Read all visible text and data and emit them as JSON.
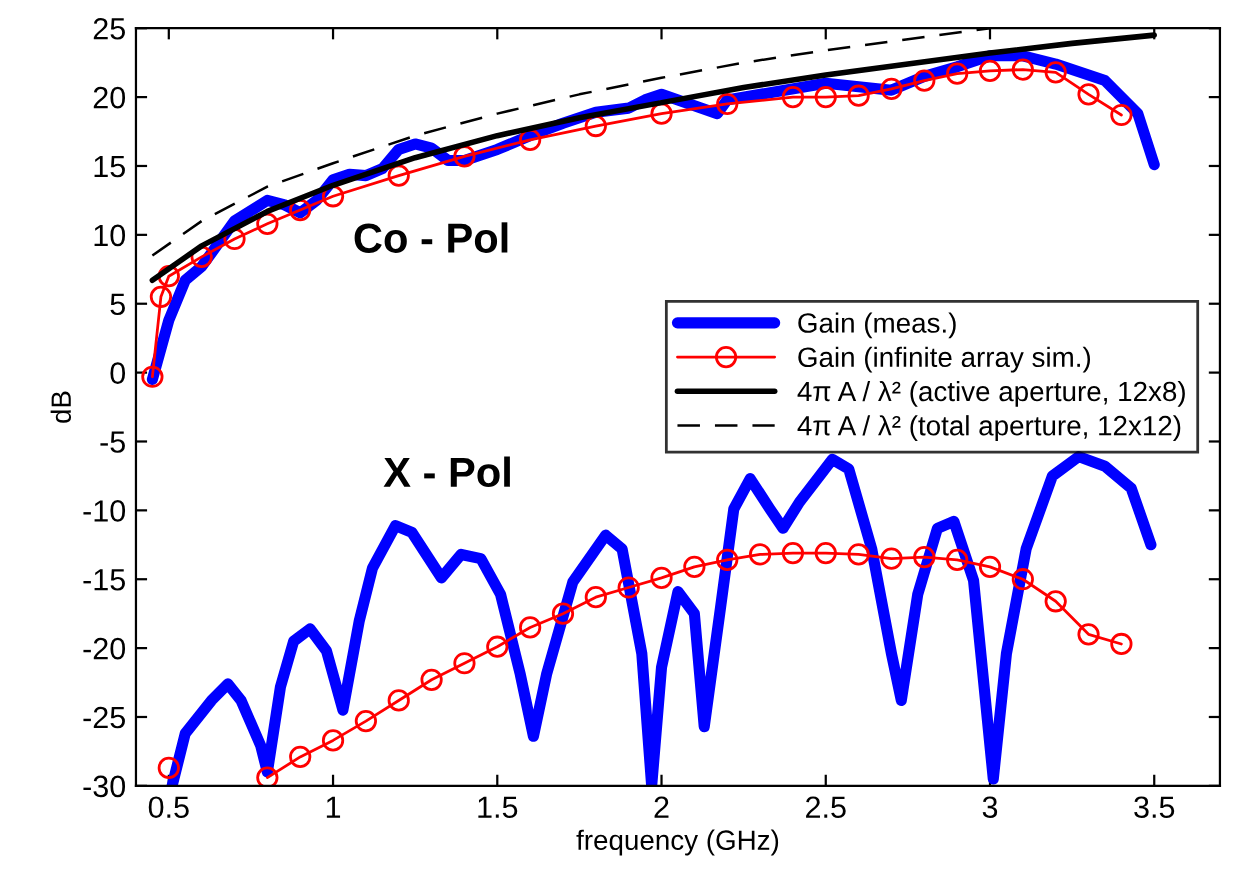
{
  "chart_data": {
    "type": "line",
    "xlabel": "frequency (GHz)",
    "ylabel": "dB",
    "xlim": [
      0.4,
      3.7
    ],
    "ylim": [
      -30,
      25
    ],
    "xticks": [
      0.5,
      1,
      1.5,
      2,
      2.5,
      3,
      3.5
    ],
    "yticks": [
      -30,
      -25,
      -20,
      -15,
      -10,
      -5,
      0,
      5,
      10,
      15,
      20,
      25
    ],
    "grid": false,
    "legend": "right",
    "annotations": [
      "Co - Pol",
      "X - Pol"
    ],
    "series": [
      {
        "name": "Gain (meas.)",
        "color": "#0000ff",
        "line_style": "solid",
        "marker": "none",
        "x": [
          0.45,
          0.5,
          0.55,
          0.6,
          0.7,
          0.8,
          0.85,
          0.9,
          0.95,
          1.0,
          1.05,
          1.1,
          1.15,
          1.2,
          1.25,
          1.3,
          1.35,
          1.4,
          1.5,
          1.6,
          1.7,
          1.8,
          1.9,
          1.95,
          2.0,
          2.17,
          2.2,
          2.5,
          2.7,
          2.8,
          2.9,
          3.0,
          3.1,
          3.2,
          3.35,
          3.45,
          3.5
        ],
        "values": [
          -0.5,
          3.8,
          6.7,
          7.7,
          11,
          12.5,
          12.2,
          11.6,
          12.5,
          14,
          14.4,
          14.3,
          14.8,
          16.2,
          16.6,
          16.3,
          15.4,
          15.4,
          16.2,
          17.2,
          18.1,
          18.9,
          19.2,
          19.8,
          20.2,
          18.8,
          19.8,
          21,
          20.5,
          21.5,
          22.2,
          23,
          23,
          22.4,
          21.2,
          18.8,
          15.1
        ]
      },
      {
        "name": "Gain (infinite array sim.)",
        "color": "#ff0000",
        "line_style": "solid",
        "marker": "circle",
        "x": [
          0.45,
          0.476,
          0.5,
          0.6,
          0.7,
          0.8,
          0.9,
          1.0,
          1.2,
          1.4,
          1.6,
          1.8,
          2.0,
          2.2,
          2.4,
          2.5,
          2.6,
          2.7,
          2.8,
          2.9,
          3.0,
          3.1,
          3.2,
          3.3,
          3.4
        ],
        "values": [
          -0.3,
          5.5,
          7,
          8.4,
          9.7,
          10.8,
          11.8,
          12.8,
          14.3,
          15.7,
          16.9,
          17.9,
          18.8,
          19.5,
          20,
          20,
          20.1,
          20.6,
          21.2,
          21.7,
          21.9,
          22,
          21.8,
          20.2,
          18.7
        ]
      },
      {
        "name": "4π A / λ² (active aperture, 12x8)",
        "color": "#000000",
        "line_style": "solid",
        "marker": "none",
        "x": [
          0.45,
          0.6,
          0.8,
          1.0,
          1.25,
          1.5,
          1.75,
          2.0,
          2.25,
          2.5,
          2.75,
          3.0,
          3.25,
          3.5
        ],
        "values": [
          6.7,
          9.2,
          11.7,
          13.6,
          15.6,
          17.2,
          18.5,
          19.6,
          20.7,
          21.6,
          22.4,
          23.2,
          23.9,
          24.5
        ]
      },
      {
        "name": "4π A / λ² (total aperture, 12x12)",
        "color": "#000000",
        "line_style": "dashed",
        "marker": "none",
        "x": [
          0.45,
          0.6,
          0.8,
          1.0,
          1.25,
          1.5,
          1.75,
          2.0,
          2.25,
          2.5,
          2.75,
          3.0
        ],
        "values": [
          8.5,
          11.0,
          13.5,
          15.2,
          17.2,
          18.8,
          20.2,
          21.4,
          22.5,
          23.4,
          24.2,
          25.0
        ]
      },
      {
        "color": "#0000ff",
        "line_style": "solid",
        "marker": "none",
        "x": [
          0.51,
          0.55,
          0.63,
          0.68,
          0.72,
          0.78,
          0.8,
          0.84,
          0.88,
          0.93,
          0.98,
          1.03,
          1.08,
          1.12,
          1.19,
          1.24,
          1.33,
          1.39,
          1.45,
          1.51,
          1.57,
          1.61,
          1.65,
          1.73,
          1.83,
          1.88,
          1.94,
          1.97,
          2.0,
          2.05,
          2.1,
          2.13,
          2.18,
          2.22,
          2.27,
          2.33,
          2.37,
          2.42,
          2.52,
          2.57,
          2.64,
          2.7,
          2.73,
          2.78,
          2.84,
          2.89,
          2.95,
          3.01,
          3.05,
          3.11,
          3.19,
          3.27,
          3.35,
          3.43,
          3.49
        ],
        "values": [
          -30,
          -26.2,
          -23.8,
          -22.6,
          -23.8,
          -27.1,
          -29,
          -22.8,
          -19.5,
          -18.6,
          -20.2,
          -24.5,
          -18,
          -14.2,
          -11.1,
          -11.6,
          -14.9,
          -13.2,
          -13.5,
          -16.1,
          -21.9,
          -26.4,
          -21.9,
          -15.2,
          -11.8,
          -12.8,
          -20.4,
          -30,
          -21.4,
          -15.9,
          -17.5,
          -25.7,
          -17,
          -9.9,
          -7.7,
          -9.9,
          -11.3,
          -9.4,
          -6.3,
          -7,
          -12.8,
          -20.4,
          -23.8,
          -16.1,
          -11.3,
          -10.8,
          -15.1,
          -29.5,
          -20.4,
          -12.8,
          -7.5,
          -6.1,
          -6.8,
          -8.4,
          -12.5
        ]
      },
      {
        "color": "#ff0000",
        "line_style": "solid",
        "marker": "circle",
        "x": [
          0.5,
          0.6,
          0.7,
          0.8,
          0.9,
          1.0,
          1.1,
          1.2,
          1.3,
          1.4,
          1.5,
          1.6,
          1.7,
          1.8,
          1.9,
          2.0,
          2.1,
          2.2,
          2.3,
          2.4,
          2.5,
          2.6,
          2.7,
          2.8,
          2.9,
          3.0,
          3.1,
          3.2,
          3.3,
          3.4
        ],
        "values": [
          -28.7,
          null,
          null,
          -29.4,
          -27.9,
          -26.7,
          -25.3,
          -23.8,
          -22.3,
          -21.1,
          -19.9,
          -18.5,
          -17.5,
          -16.3,
          -15.6,
          -14.9,
          -14.1,
          -13.6,
          -13.2,
          -13.1,
          -13.1,
          -13.2,
          -13.5,
          -13.4,
          -13.6,
          -14.1,
          -15,
          -16.6,
          -19,
          -19.7
        ]
      }
    ]
  }
}
